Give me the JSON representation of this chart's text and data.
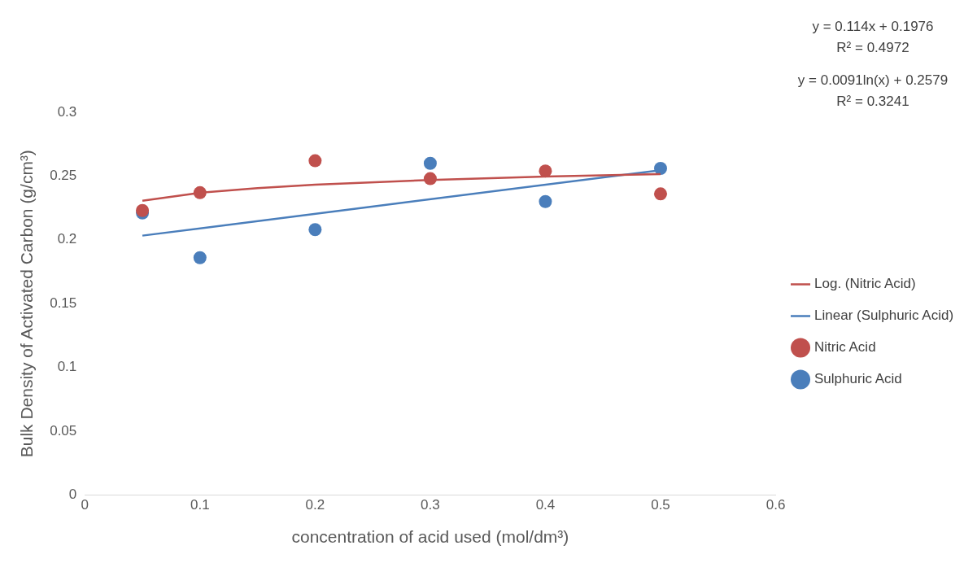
{
  "chart_data": {
    "type": "scatter",
    "xlabel": "concentration of acid used (mol/dm³)",
    "ylabel": "Bulk Density of Activated Carbon (g/cm³)",
    "xlim": [
      0,
      0.6
    ],
    "xticks": [
      0,
      0.1,
      0.2,
      0.3,
      0.4,
      0.5,
      0.6
    ],
    "ylim": [
      0,
      0.3
    ],
    "yticks": [
      0,
      0.05,
      0.1,
      0.15,
      0.2,
      0.25,
      0.3
    ],
    "grid": false,
    "legend": "right",
    "marker": "circle",
    "series": [
      {
        "name": "Sulphuric Acid",
        "color": "#4a7ebb",
        "x": [
          0.05,
          0.1,
          0.2,
          0.3,
          0.4,
          0.5
        ],
        "values": [
          0.221,
          0.186,
          0.208,
          0.26,
          0.23,
          0.256
        ]
      },
      {
        "name": "Nitric Acid",
        "color": "#c0504d",
        "x": [
          0.05,
          0.1,
          0.2,
          0.3,
          0.4,
          0.5
        ],
        "values": [
          0.223,
          0.237,
          0.262,
          0.248,
          0.254,
          0.236
        ]
      },
      {
        "name": "Linear (Sulphuric Acid)",
        "type": "line",
        "marker": "none",
        "line_style": "solid",
        "color": "#4a7ebb",
        "x": [
          0.05,
          0.5
        ],
        "values": [
          0.2033,
          0.2546
        ]
      },
      {
        "name": "Log. (Nitric Acid)",
        "type": "line",
        "marker": "none",
        "line_style": "solid",
        "color": "#c0504d",
        "x": [
          0.05,
          0.1,
          0.15,
          0.2,
          0.3,
          0.4,
          0.5
        ],
        "values": [
          0.2306,
          0.2369,
          0.2406,
          0.2433,
          0.2469,
          0.2496,
          0.2516
        ]
      }
    ],
    "annotations": [
      "y = 0.114x + 0.1976",
      "R² = 0.4972",
      "y = 0.0091ln(x) + 0.2579",
      "R² = 0.3241"
    ]
  }
}
